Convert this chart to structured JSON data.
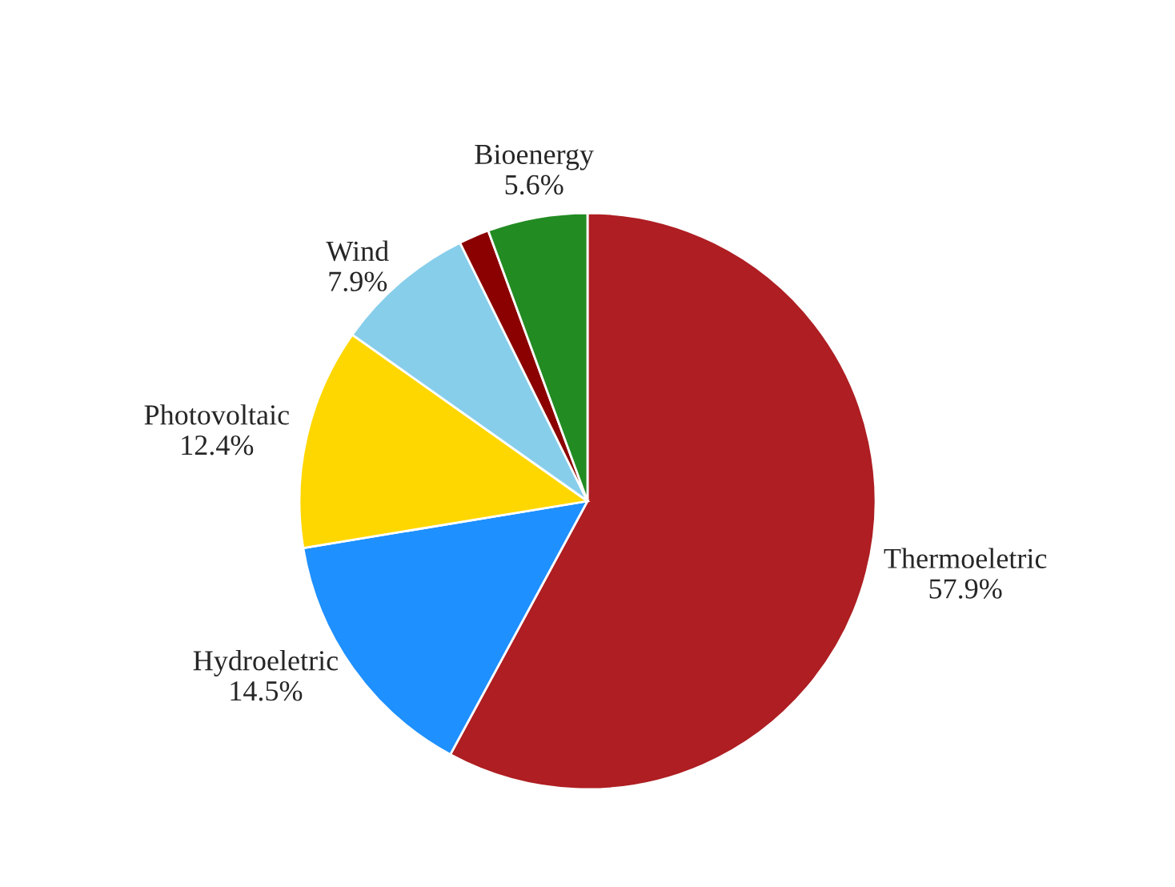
{
  "chart_data": {
    "type": "pie",
    "categories": [
      "Thermoeletric",
      "Hydroeletric",
      "Photovoltaic",
      "Wind",
      null,
      "Bioenergy"
    ],
    "values": [
      57.9,
      14.5,
      12.4,
      7.9,
      1.7,
      5.6
    ],
    "value_labels": [
      "57.9%",
      "14.5%",
      "12.4%",
      "7.9%",
      null,
      "5.6%"
    ],
    "colors": [
      "#ae1e22",
      "#1e90ff",
      "#ffd700",
      "#87ceeb",
      "#8b0000",
      "#228b22"
    ]
  }
}
